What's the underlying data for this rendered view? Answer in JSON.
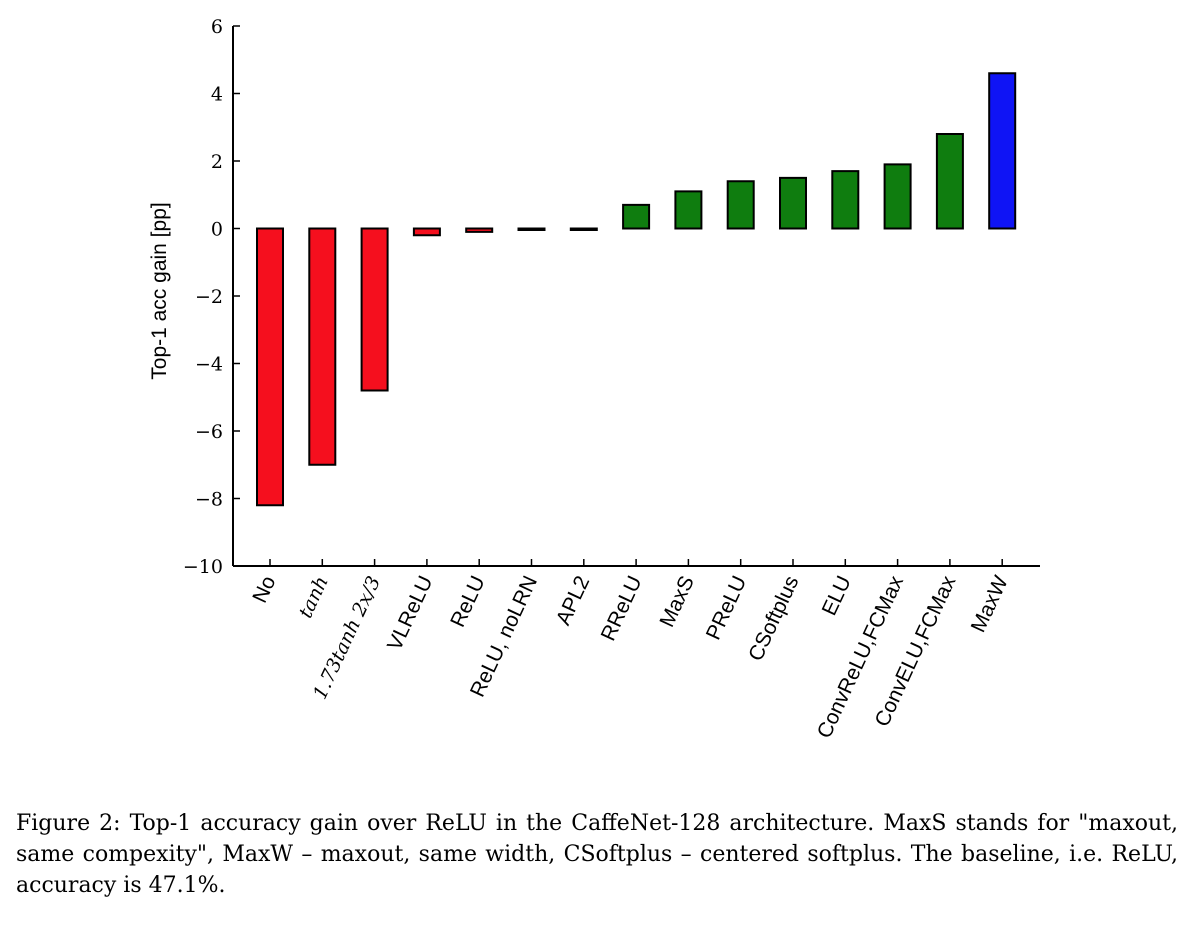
{
  "chart_data": {
    "type": "bar",
    "categories": [
      "No",
      "tanh",
      "1.73tanh 2x/3",
      "VLReLU",
      "ReLU",
      "ReLU, noLRN",
      "APL2",
      "RReLU",
      "MaxS",
      "PReLU",
      "CSoftplus",
      "ELU",
      "ConvReLU,FCMax",
      "ConvELU,FCMax",
      "MaxW"
    ],
    "values": [
      -8.2,
      -7.0,
      -4.8,
      -0.2,
      -0.1,
      0.0,
      0.0,
      0.7,
      1.1,
      1.4,
      1.5,
      1.7,
      1.9,
      2.8,
      4.6
    ],
    "bar_colors": [
      "#f50f1e",
      "#f50f1e",
      "#f50f1e",
      "#f50f1e",
      "#f50f1e",
      "#000000",
      "#000000",
      "#0f7d0f",
      "#0f7d0f",
      "#0f7d0f",
      "#0f7d0f",
      "#0f7d0f",
      "#0f7d0f",
      "#0f7d0f",
      "#0f14f5"
    ],
    "ylabel": "Top-1 acc gain [pp]",
    "xlabel": "",
    "title": "",
    "ylim": [
      -10,
      6
    ],
    "yticks": [
      6,
      4,
      2,
      0,
      -2,
      -4,
      -6,
      -8,
      -10
    ],
    "ytick_labels": [
      "6",
      "4",
      "2",
      "0",
      "−2",
      "−4",
      "−6",
      "−8",
      "−10"
    ],
    "grid": false,
    "legend": "none"
  },
  "caption": "Figure 2: Top-1 accuracy gain over ReLU in the CaffeNet-128 architecture. MaxS stands for \"maxout, same compexity\", MaxW – maxout, same width, CSoftplus – centered softplus. The baseline, i.e. ReLU, accuracy is 47.1%."
}
